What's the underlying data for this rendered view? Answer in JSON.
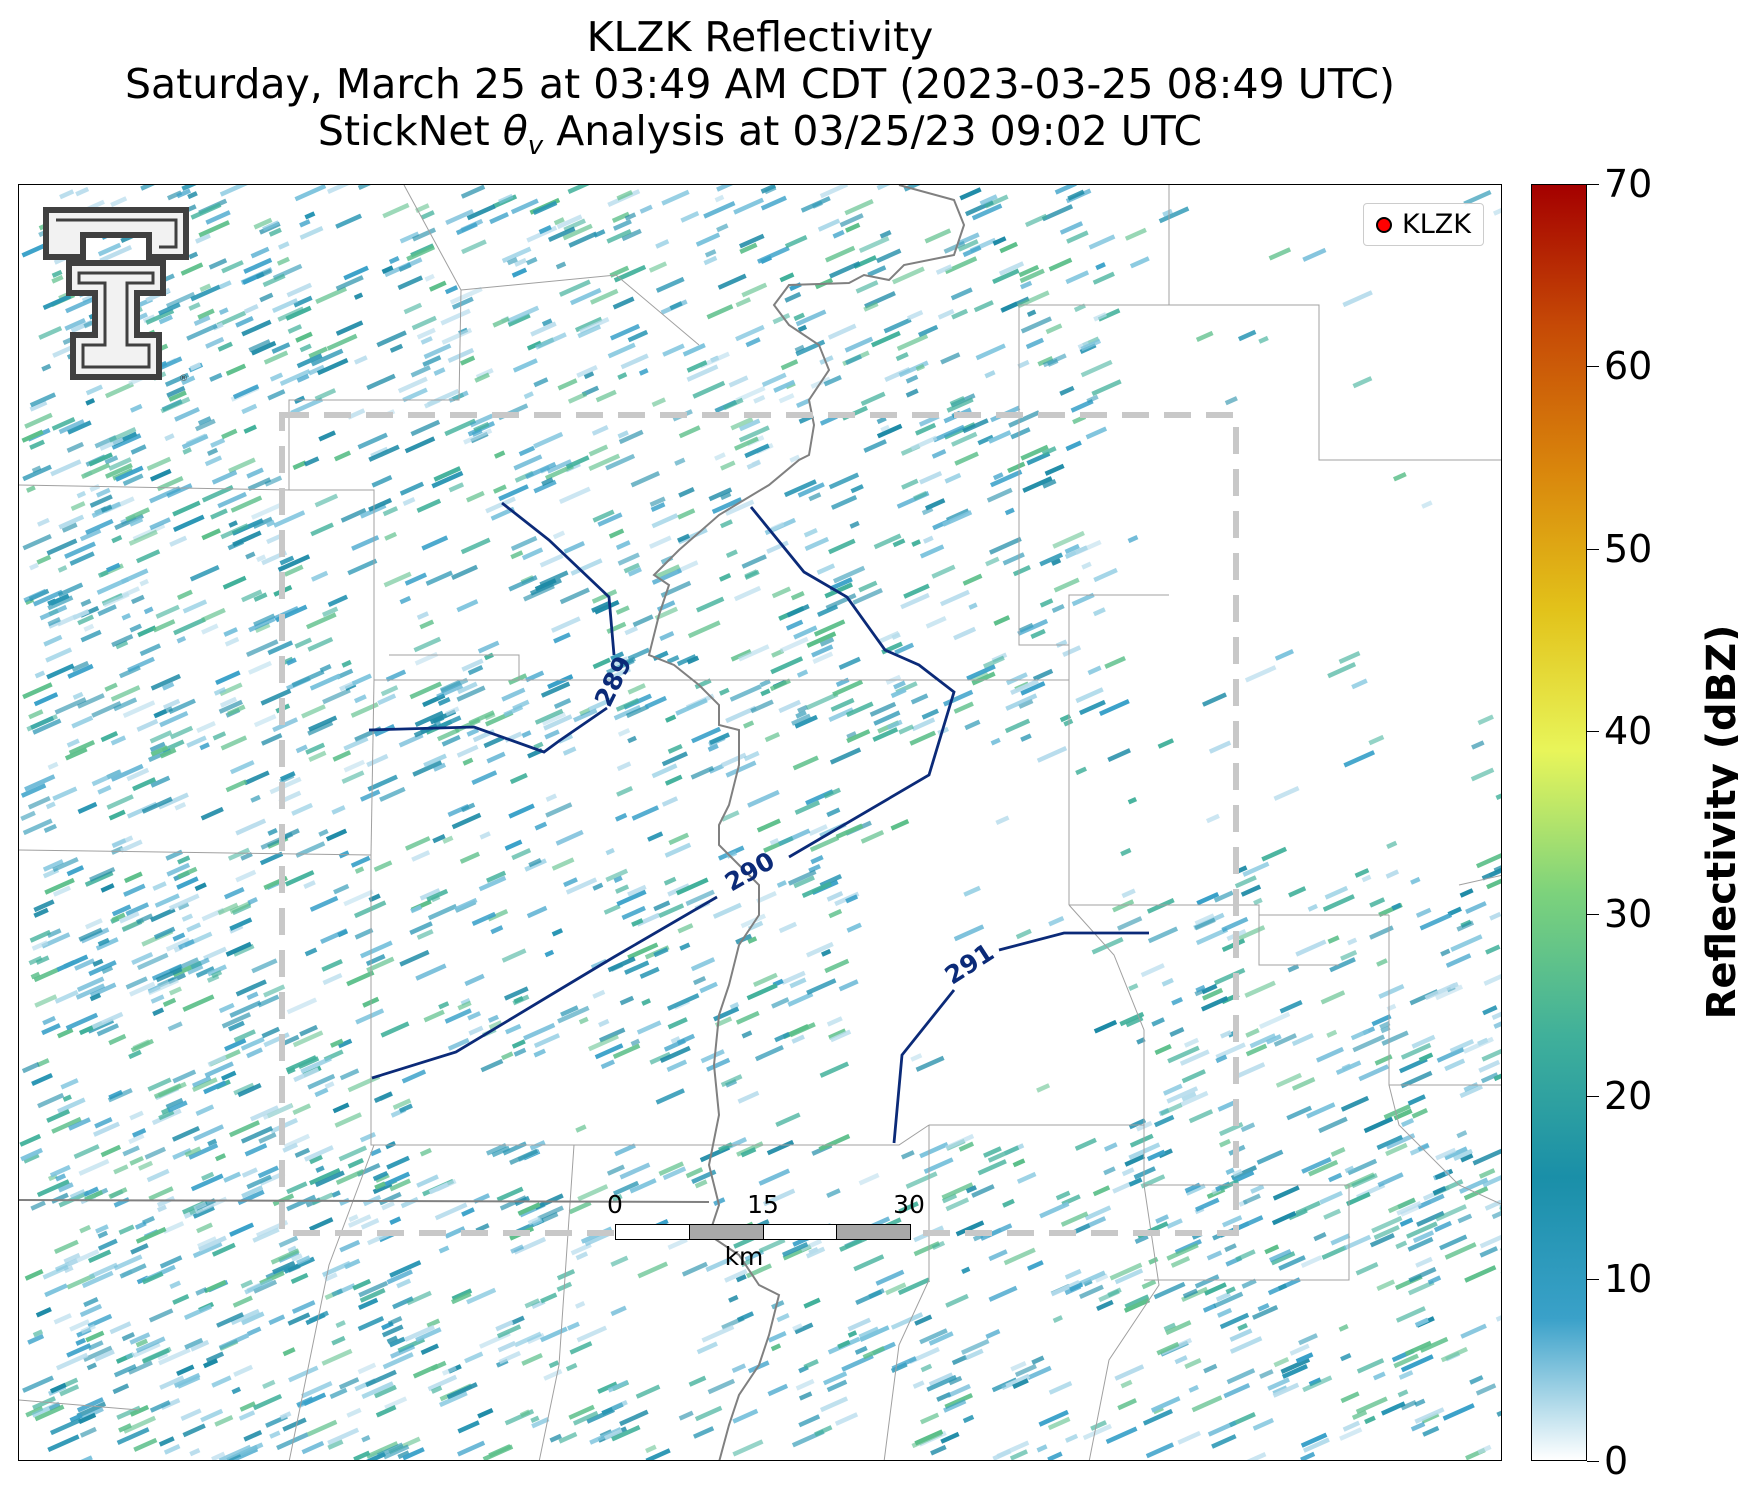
{
  "title": {
    "line1": "KLZK Reflectivity",
    "line2": "Saturday, March 25 at 03:49 AM CDT (2023-03-25 08:49 UTC)",
    "line3_prefix": "StickNet ",
    "line3_theta": "θ",
    "line3_sub": "v",
    "line3_suffix": " Analysis at 03/25/23 09:02 UTC"
  },
  "legend": {
    "label": "KLZK",
    "marker_color": "#ff0000"
  },
  "contours": [
    {
      "label": "289",
      "color": "#0b2a78"
    },
    {
      "label": "290",
      "color": "#0b2a78"
    },
    {
      "label": "291",
      "color": "#0b2a78"
    }
  ],
  "scale_bar": {
    "ticks": [
      "0",
      "15",
      "30"
    ],
    "unit": "km"
  },
  "colorbar": {
    "title": "Reflectivity (dBZ)",
    "ticks": [
      "0",
      "10",
      "20",
      "30",
      "40",
      "50",
      "60",
      "70"
    ],
    "min": 0,
    "max": 70,
    "colors": [
      "#ffffff",
      "#3aa1c9",
      "#1a8fa8",
      "#40b09a",
      "#7cd27c",
      "#e8f55a",
      "#e2c21a",
      "#d9850c",
      "#c64a06",
      "#a40000"
    ]
  },
  "colors": {
    "domain_box": "#c8c8c8",
    "state_border": "#808080",
    "county_lines": "#a0a0a0"
  }
}
